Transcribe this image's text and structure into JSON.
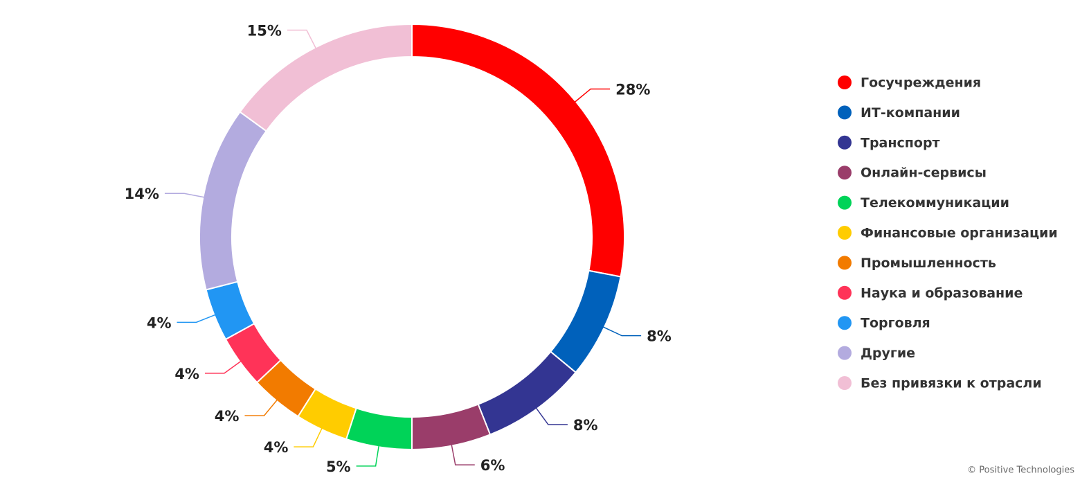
{
  "chart_data": {
    "type": "donut",
    "categories": [
      "Госучреждения",
      "ИТ-компании",
      "Транспорт",
      "Онлайн-сервисы",
      "Телекоммуникации",
      "Финансовые организации",
      "Промышленность",
      "Наука и образование",
      "Торговля",
      "Другие",
      "Без привязки к отрасли"
    ],
    "values": [
      28,
      8,
      8,
      6,
      5,
      4,
      4,
      4,
      4,
      14,
      15
    ],
    "value_labels": [
      "28%",
      "8%",
      "8%",
      "6%",
      "5%",
      "4%",
      "4%",
      "4%",
      "4%",
      "14%",
      "15%"
    ],
    "colors": [
      "#ff0000",
      "#0061bb",
      "#333592",
      "#9a3d6a",
      "#00d358",
      "#ffcc00",
      "#f27b00",
      "#ff3358",
      "#2196f3",
      "#b3abdf",
      "#f1bfd5"
    ],
    "legend": "right",
    "credit": "© Positive Technologies"
  }
}
